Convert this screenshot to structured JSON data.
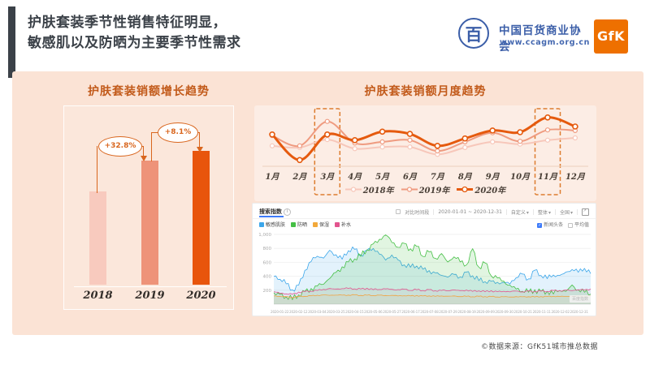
{
  "header": {
    "title_line1": "护肤套装季节性销售特征明显，",
    "title_line2": "敏感肌以及防晒为主要季节性需求",
    "association": {
      "emblem_char": "百",
      "name": "中国百货商业协会",
      "url": "www.ccagm.org.cn"
    },
    "gfk_logo": "GfK"
  },
  "footer": {
    "source": "©数据来源：GfK51城市推总数据"
  },
  "colors": {
    "panel_bg": "#fbe3d5",
    "accent_bar": "#3b4148",
    "title_text": "#3b4148",
    "chart_title": "#c25a1a",
    "annotation_orange": "#d9661e",
    "highlight_dash": "#dd7c2e",
    "association_blue": "#3b5ea8",
    "gfk_orange": "#ee7000",
    "baidu_blue": "#3e7bfa"
  },
  "search_panel": {
    "tab": "搜索指数",
    "compare_label": "对比时间段",
    "date_range": "2020-01-01 ~ 2020-12-31",
    "dropdowns": [
      "自定义",
      "整体",
      "全国"
    ],
    "toggles": [
      {
        "label": "新闻头条",
        "checked": true
      },
      {
        "label": "平均值",
        "checked": false
      }
    ],
    "watermark": "百度指数"
  },
  "chart_data": [
    {
      "id": "growth-bars",
      "type": "bar",
      "title": "护肤套装销额增长趋势",
      "categories": [
        "2018",
        "2019",
        "2020"
      ],
      "values": [
        100,
        132.8,
        143.6
      ],
      "value_scale": "relative sales index, 2018 = 100",
      "growth_labels": [
        "+32.8%",
        "+8.1%"
      ],
      "bar_colors": [
        "#f8cabe",
        "#ee9379",
        "#e8550c"
      ]
    },
    {
      "id": "monthly-trend",
      "type": "line",
      "title": "护肤套装销额月度趋势",
      "categories": [
        "1月",
        "2月",
        "3月",
        "4月",
        "5月",
        "6月",
        "7月",
        "8月",
        "9月",
        "10月",
        "11月",
        "12月"
      ],
      "series": [
        {
          "name": "2018年",
          "color": "#f7c7ba",
          "width": 2,
          "values": [
            36,
            33,
            47,
            31,
            34,
            34,
            21,
            33,
            43,
            39,
            46,
            50
          ]
        },
        {
          "name": "2019年",
          "color": "#ef9b80",
          "width": 2,
          "values": [
            54,
            36,
            79,
            41,
            43,
            46,
            27,
            43,
            59,
            44,
            64,
            63
          ]
        },
        {
          "name": "2020年",
          "color": "#e55a0e",
          "width": 3,
          "values": [
            56,
            11,
            56,
            46,
            61,
            57,
            36,
            49,
            63,
            60,
            86,
            70
          ]
        }
      ],
      "value_scale": "relative sales index 0-100 (estimated from chart)",
      "highlight_months": [
        "3月",
        "11月"
      ],
      "legend_position": "bottom"
    },
    {
      "id": "baidu-search-index",
      "type": "area",
      "title": "搜索指数",
      "ylim": [
        0,
        1000
      ],
      "y_ticks": [
        "1,000",
        "800",
        "600",
        "400",
        "200"
      ],
      "y_tick_values": [
        1000,
        800,
        600,
        400,
        200
      ],
      "x_labels": [
        "2020-01-22",
        "2020-02-12",
        "2020-03-04",
        "2020-03-25",
        "2020-04-15",
        "2020-05-06",
        "2020-05-27",
        "2020-06-17",
        "2020-07-08",
        "2020-07-29",
        "2020-08-19",
        "2020-09-09",
        "2020-09-30",
        "2020-10-21",
        "2020-11-11",
        "2020-12-02",
        "2020-12-31"
      ],
      "x_scale": "weekly samples, Jan–Dec 2020",
      "series": [
        {
          "name": "敏感肌肤",
          "color": "#3ba6ea",
          "values": [
            400,
            370,
            300,
            200,
            260,
            480,
            620,
            700,
            660,
            760,
            700,
            650,
            780,
            790,
            700,
            760,
            800,
            730,
            640,
            700,
            620,
            560,
            540,
            560,
            500,
            470,
            440,
            420,
            400,
            430,
            380,
            450,
            410,
            350,
            330,
            320,
            300,
            310,
            300,
            390,
            430,
            350,
            480,
            420,
            380,
            420,
            400,
            450,
            500,
            470,
            520,
            430
          ]
        },
        {
          "name": "防晒",
          "color": "#45bf45",
          "values": [
            150,
            130,
            110,
            80,
            140,
            170,
            210,
            260,
            300,
            380,
            450,
            520,
            600,
            660,
            700,
            780,
            850,
            920,
            1000,
            900,
            820,
            860,
            780,
            830,
            700,
            760,
            650,
            710,
            600,
            690,
            620,
            560,
            780,
            520,
            600,
            420,
            380,
            320,
            260,
            220,
            200,
            180,
            200,
            170,
            180,
            160,
            210,
            180,
            260,
            200,
            180,
            160
          ]
        },
        {
          "name": "保湿",
          "color": "#f2a93b",
          "values": [
            120,
            110,
            105,
            95,
            110,
            115,
            120,
            125,
            130,
            128,
            132,
            130,
            128,
            132,
            126,
            130,
            124,
            128,
            122,
            126,
            120,
            124,
            118,
            122,
            116,
            120,
            114,
            118,
            112,
            116,
            110,
            114,
            108,
            112,
            106,
            110,
            104,
            108,
            102,
            106,
            104,
            108,
            106,
            110,
            108,
            112,
            110,
            114,
            112,
            116,
            114,
            118
          ]
        },
        {
          "name": "补水",
          "color": "#e2548e",
          "values": [
            180,
            160,
            150,
            140,
            170,
            180,
            190,
            200,
            210,
            220,
            215,
            225,
            230,
            220,
            215,
            225,
            210,
            215,
            220,
            210,
            205,
            215,
            200,
            210,
            195,
            205,
            190,
            200,
            195,
            205,
            190,
            200,
            185,
            195,
            180,
            190,
            175,
            185,
            180,
            190,
            175,
            185,
            180,
            190,
            185,
            195,
            190,
            200,
            195,
            210,
            205,
            215
          ]
        }
      ]
    }
  ]
}
